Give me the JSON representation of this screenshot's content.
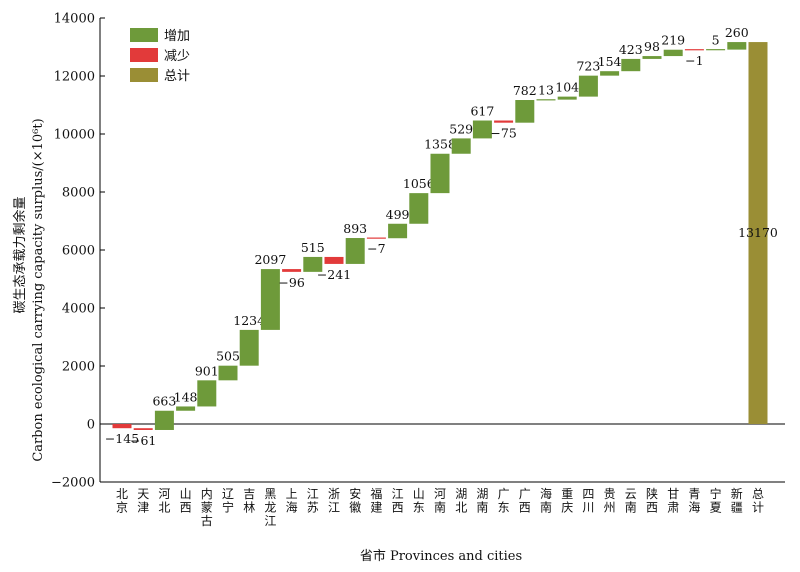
{
  "chart_data": {
    "type": "waterfall",
    "xlabel": "省市 Provinces and cities",
    "ylabel_cn": "碳生态承载力剩余量",
    "ylabel_en": "Carbon ecological carrying capacity surplus/(×10⁶t)",
    "ylim": [
      -2000,
      14000
    ],
    "yticks": [
      -2000,
      0,
      2000,
      4000,
      6000,
      8000,
      10000,
      12000,
      14000
    ],
    "legend": {
      "placement": "top-left",
      "entries": [
        {
          "label": "增加",
          "color": "#6e9a3a"
        },
        {
          "label": "减少",
          "color": "#e23a3a"
        },
        {
          "label": "总计",
          "color": "#9a8e35"
        }
      ]
    },
    "colors": {
      "increase": "#6e9a3a",
      "decrease": "#e23a3a",
      "total": "#9a8e35"
    },
    "categories": [
      "北京",
      "天津",
      "河北",
      "山西",
      "内蒙古",
      "辽宁",
      "吉林",
      "黑龙江",
      "上海",
      "江苏",
      "浙江",
      "安徽",
      "福建",
      "江西",
      "山东",
      "河南",
      "湖北",
      "湖南",
      "广东",
      "广西",
      "海南",
      "重庆",
      "四川",
      "贵州",
      "云南",
      "陕西",
      "甘肃",
      "青海",
      "宁夏",
      "新疆",
      "总计"
    ],
    "values": [
      -145,
      -61,
      663,
      148,
      901,
      505,
      1234,
      2097,
      -96,
      515,
      -241,
      893,
      -7,
      499,
      1056,
      1358,
      529,
      617,
      -75,
      782,
      13,
      104,
      723,
      154,
      423,
      98,
      219,
      -1,
      5,
      260,
      13170
    ],
    "value_labels": [
      "−145",
      "−61",
      "663",
      "148",
      "901",
      "505",
      "1234",
      "2097",
      "−96",
      "515",
      "−241",
      "893",
      "−7",
      "499",
      "1056",
      "1358",
      "529",
      "617",
      "−75",
      "782",
      "13",
      "104",
      "723",
      "154",
      "423",
      "98",
      "219",
      "−1",
      "5",
      "260",
      "13170"
    ]
  }
}
